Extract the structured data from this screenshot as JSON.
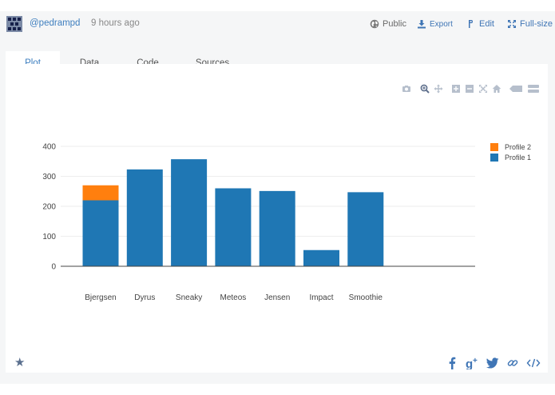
{
  "header": {
    "username": "@pedrampd",
    "time_ago": "9 hours ago",
    "public_label": "Public",
    "export_label": "Export",
    "edit_label": "Edit",
    "fullsize_label": "Full-size"
  },
  "tabs": [
    {
      "label": "Plot",
      "active": true
    },
    {
      "label": "Data",
      "active": false
    },
    {
      "label": "Code",
      "active": false
    },
    {
      "label": "Sources",
      "active": false
    }
  ],
  "modebar_icons": [
    "camera-icon",
    "zoom-icon",
    "pan-icon",
    "zoom-in-icon",
    "zoom-out-icon",
    "autoscale-icon",
    "reset-axes-icon",
    "spike-lines-icon",
    "compare-data-icon"
  ],
  "footer": {
    "star_icon": "star-icon",
    "share_icons": [
      "facebook-icon",
      "google-plus-icon",
      "twitter-icon",
      "link-icon",
      "embed-icon"
    ]
  },
  "colors": {
    "profile1": "#1f77b4",
    "profile2": "#ff7f0e",
    "link": "#3f75b5"
  },
  "chart_data": {
    "type": "bar",
    "barmode": "stack",
    "categories": [
      "Bjergsen",
      "Dyrus",
      "Sneaky",
      "Meteos",
      "Jensen",
      "Impact",
      "Smoothie"
    ],
    "series": [
      {
        "name": "Profile 1",
        "values": [
          220,
          323,
          357,
          260,
          251,
          54,
          247
        ]
      },
      {
        "name": "Profile 2",
        "values": [
          50,
          0,
          0,
          0,
          0,
          0,
          0
        ]
      }
    ],
    "legend_order": [
      "Profile 2",
      "Profile 1"
    ],
    "yticks": [
      0,
      100,
      200,
      300,
      400
    ],
    "ylim": [
      0,
      400
    ],
    "grid": true,
    "legend_position": "top-right",
    "title": "",
    "xlabel": "",
    "ylabel": ""
  }
}
